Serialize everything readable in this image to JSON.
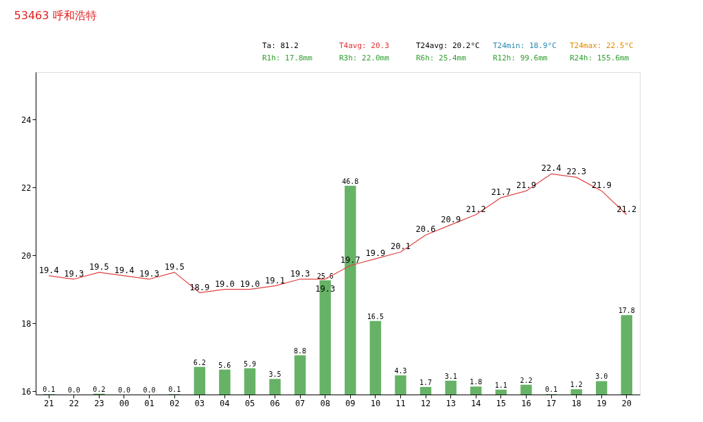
{
  "chart_data": {
    "type": "bar",
    "title": "53463   呼和浩特",
    "annotations": [
      "Ta:  81.2",
      "T4avg:  20.3",
      "T24avg: 20.2°C",
      "T24min: 18.9°C",
      "T24max: 22.5°C",
      "R1h:  17.8mm",
      "R3h:  22.0mm",
      "R6h:  25.4mm",
      "R12h:  99.6mm",
      "R24h:  155.6mm"
    ],
    "categories": [
      "21",
      "22",
      "23",
      "00",
      "01",
      "02",
      "03",
      "04",
      "05",
      "06",
      "07",
      "08",
      "09",
      "10",
      "11",
      "12",
      "13",
      "14",
      "15",
      "16",
      "17",
      "18",
      "19",
      "20"
    ],
    "series": [
      {
        "axis": "y2",
        "color": "#66b266",
        "values": [
          0.1,
          0.0,
          0.2,
          0.0,
          0.0,
          0.1,
          6.2,
          5.6,
          5.9,
          3.5,
          8.8,
          25.6,
          46.8,
          16.5,
          4.3,
          1.7,
          3.1,
          1.8,
          1.1,
          2.2,
          0.1,
          1.2,
          3.0,
          17.8
        ],
        "value_labels": [
          "0.1",
          "0.0",
          "0.2",
          "0.0",
          "0.0",
          "0.1",
          "6.2",
          "5.6",
          "5.9",
          "3.5",
          "8.8",
          "25.6",
          "46.8",
          "16.5",
          "4.3",
          "1.7",
          "3.1",
          "1.8",
          "1.1",
          "2.2",
          "0.1",
          "1.2",
          "3.0",
          "17.8"
        ]
      },
      {
        "type": "line",
        "axis": "y",
        "color": "#e04040",
        "values": [
          19.4,
          19.3,
          19.5,
          19.4,
          19.3,
          19.5,
          18.9,
          19.0,
          19.0,
          19.1,
          19.3,
          19.3,
          19.7,
          19.9,
          20.1,
          20.6,
          20.9,
          21.2,
          21.7,
          21.9,
          22.4,
          22.3,
          21.9,
          21.2
        ],
        "value_labels": [
          "19.4",
          "19.3",
          "19.5",
          "19.4",
          "19.3",
          "19.5",
          "18.9",
          "19.0",
          "19.0",
          "19.1",
          "19.3",
          "19.3",
          "19.7",
          "19.9",
          "20.1",
          "20.6",
          "20.9",
          "21.2",
          "21.7",
          "21.9",
          "22.4",
          "22.3",
          "21.9",
          "21.2"
        ]
      }
    ],
    "ylim": [
      15.9,
      25.4
    ],
    "yticks": [
      16,
      18,
      20,
      22,
      24
    ],
    "y2lim": [
      0,
      72.3
    ],
    "tick_labels": "xy",
    "grid": false,
    "marker": "none",
    "line_style": "solid"
  }
}
